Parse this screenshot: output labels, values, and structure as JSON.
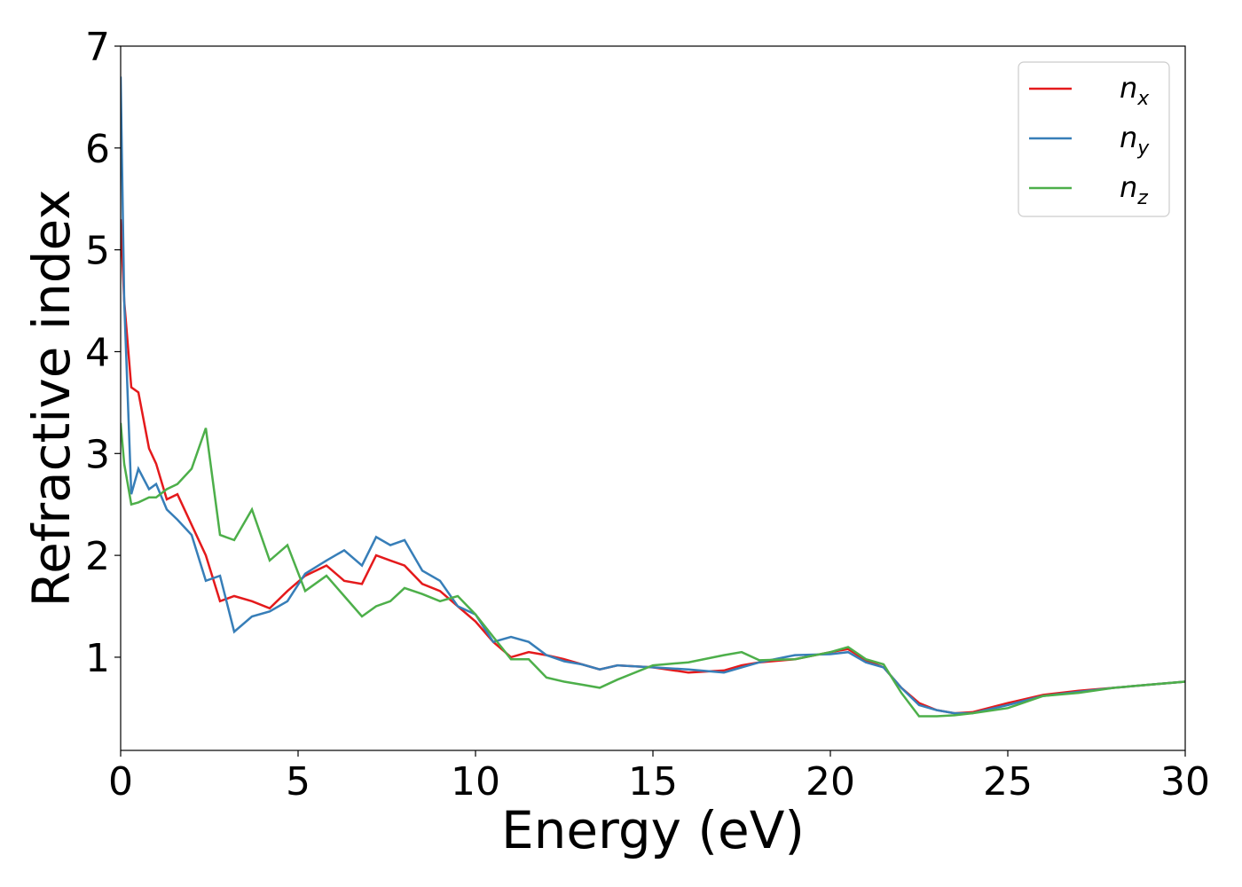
{
  "chart_data": {
    "type": "line",
    "xlabel": "Energy (eV)",
    "ylabel": "Refractive index",
    "x": [
      0,
      0.1,
      0.3,
      0.5,
      0.8,
      1.0,
      1.3,
      1.6,
      2.0,
      2.4,
      2.8,
      3.2,
      3.7,
      4.2,
      4.7,
      5.2,
      5.8,
      6.3,
      6.8,
      7.2,
      7.6,
      8.0,
      8.5,
      9.0,
      9.5,
      10.0,
      10.5,
      11.0,
      11.5,
      12.0,
      12.5,
      13.0,
      13.5,
      14.0,
      15.0,
      16.0,
      17.0,
      17.5,
      18.0,
      19.0,
      20.0,
      20.5,
      21.0,
      21.5,
      22.0,
      22.5,
      23.0,
      23.5,
      24.0,
      25.0,
      26.0,
      27.0,
      28.0,
      29.0,
      30.0
    ],
    "series": [
      {
        "name": "nx",
        "color": "#e41a1c",
        "values": [
          5.3,
          4.5,
          3.65,
          3.6,
          3.05,
          2.9,
          2.55,
          2.6,
          2.3,
          2.0,
          1.55,
          1.6,
          1.55,
          1.48,
          1.65,
          1.8,
          1.9,
          1.75,
          1.72,
          2.0,
          1.95,
          1.9,
          1.72,
          1.65,
          1.5,
          1.35,
          1.15,
          1.0,
          1.05,
          1.02,
          0.98,
          0.93,
          0.88,
          0.92,
          0.9,
          0.85,
          0.87,
          0.92,
          0.95,
          0.98,
          1.05,
          1.08,
          0.97,
          0.9,
          0.7,
          0.55,
          0.48,
          0.45,
          0.46,
          0.55,
          0.63,
          0.67,
          0.7,
          0.73,
          0.76
        ]
      },
      {
        "name": "ny",
        "color": "#377eb8",
        "values": [
          6.7,
          4.5,
          2.6,
          2.85,
          2.65,
          2.7,
          2.45,
          2.35,
          2.2,
          1.75,
          1.8,
          1.25,
          1.4,
          1.45,
          1.55,
          1.82,
          1.95,
          2.05,
          1.9,
          2.18,
          2.1,
          2.15,
          1.85,
          1.75,
          1.5,
          1.42,
          1.15,
          1.2,
          1.15,
          1.02,
          0.96,
          0.93,
          0.88,
          0.92,
          0.9,
          0.88,
          0.85,
          0.9,
          0.95,
          1.02,
          1.03,
          1.05,
          0.95,
          0.9,
          0.7,
          0.53,
          0.48,
          0.45,
          0.45,
          0.53,
          0.62,
          0.66,
          0.7,
          0.73,
          0.76
        ]
      },
      {
        "name": "nz",
        "color": "#4daf4a",
        "values": [
          3.3,
          2.9,
          2.5,
          2.52,
          2.57,
          2.57,
          2.65,
          2.7,
          2.85,
          3.25,
          2.2,
          2.15,
          2.45,
          1.95,
          2.1,
          1.65,
          1.8,
          1.6,
          1.4,
          1.5,
          1.55,
          1.68,
          1.62,
          1.55,
          1.6,
          1.42,
          1.2,
          0.98,
          0.98,
          0.8,
          0.76,
          0.73,
          0.7,
          0.78,
          0.92,
          0.95,
          1.02,
          1.05,
          0.97,
          0.98,
          1.05,
          1.1,
          0.98,
          0.93,
          0.65,
          0.42,
          0.42,
          0.43,
          0.45,
          0.5,
          0.62,
          0.65,
          0.7,
          0.73,
          0.76
        ]
      }
    ],
    "xlim": [
      0,
      30
    ],
    "xticks": [
      0,
      5,
      10,
      15,
      20,
      25,
      30
    ],
    "ylim": [
      0.085,
      7
    ],
    "yticks": [
      1,
      2,
      3,
      4,
      5,
      6,
      7
    ],
    "grid": false,
    "legend": "upper right"
  }
}
